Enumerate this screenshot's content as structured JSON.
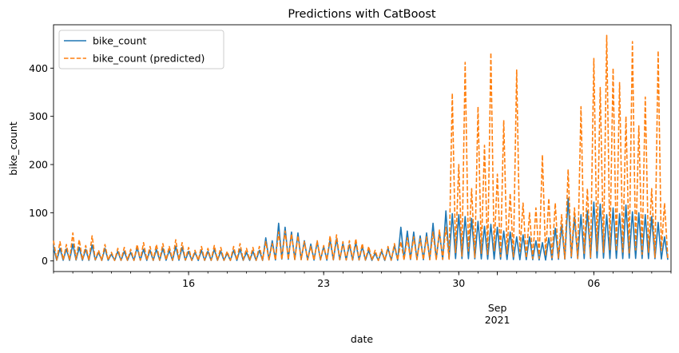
{
  "chart_data": {
    "type": "line",
    "title": "Predictions with CatBoost",
    "xlabel": "date",
    "ylabel": "bike_count",
    "x_range": [
      "2021-08-09T00:00",
      "2021-09-10T00:00"
    ],
    "ylim": [
      -22,
      490
    ],
    "y_ticks": [
      0,
      100,
      200,
      300,
      400
    ],
    "x_ticks": [
      {
        "date": "2021-08-16",
        "label": "16"
      },
      {
        "date": "2021-08-23",
        "label": "23"
      },
      {
        "date": "2021-08-30",
        "label": "30"
      },
      {
        "date": "2021-09-06",
        "label": "06"
      }
    ],
    "x_month_label": {
      "date": "2021-09-01",
      "month": "Sep",
      "year": "2021"
    },
    "grid": false,
    "legend_position": "upper-left",
    "series": [
      {
        "name": "bike_count",
        "color": "#1f77b4",
        "dash": "solid",
        "daily_peak": [
          28,
          26,
          25,
          35,
          28,
          24,
          33,
          18,
          26,
          14,
          20,
          20,
          18,
          28,
          24,
          22,
          24,
          26,
          22,
          30,
          28,
          20,
          18,
          22,
          20,
          24,
          20,
          16,
          22,
          24,
          18,
          20,
          22,
          48,
          42,
          78,
          70,
          60,
          58,
          42,
          35,
          40,
          30,
          44,
          46,
          36,
          34,
          38,
          30,
          22,
          16,
          20,
          26,
          32,
          70,
          62,
          60,
          52,
          58,
          78,
          60,
          104,
          98,
          96,
          92,
          88,
          82,
          72,
          76,
          70,
          62,
          60,
          50,
          54,
          50,
          42,
          38,
          48,
          68,
          74,
          130,
          92,
          96,
          104,
          122,
          118,
          96,
          110,
          98,
          116,
          102,
          100,
          96,
          92,
          80,
          50
        ],
        "x_start": "2021-08-09T00:00",
        "step_hours": 8
      },
      {
        "name": "bike_count (predicted)",
        "color": "#ff7f0e",
        "dash": "dashed",
        "daily_peak": [
          42,
          40,
          34,
          58,
          44,
          32,
          52,
          22,
          34,
          18,
          26,
          28,
          24,
          34,
          38,
          30,
          34,
          36,
          30,
          44,
          38,
          28,
          22,
          30,
          26,
          32,
          28,
          20,
          30,
          36,
          26,
          28,
          30,
          40,
          36,
          60,
          62,
          56,
          52,
          40,
          30,
          42,
          32,
          52,
          54,
          40,
          42,
          46,
          36,
          30,
          22,
          24,
          30,
          36,
          40,
          48,
          50,
          46,
          50,
          60,
          64,
          70,
          348,
          200,
          412,
          150,
          320,
          240,
          432,
          180,
          292,
          140,
          396,
          120,
          100,
          110,
          220,
          130,
          120,
          96,
          190,
          110,
          320,
          150,
          420,
          360,
          468,
          400,
          370,
          300,
          455,
          280,
          340,
          150,
          436,
          120
        ],
        "x_start": "2021-08-09T00:00",
        "step_hours": 8
      }
    ]
  }
}
